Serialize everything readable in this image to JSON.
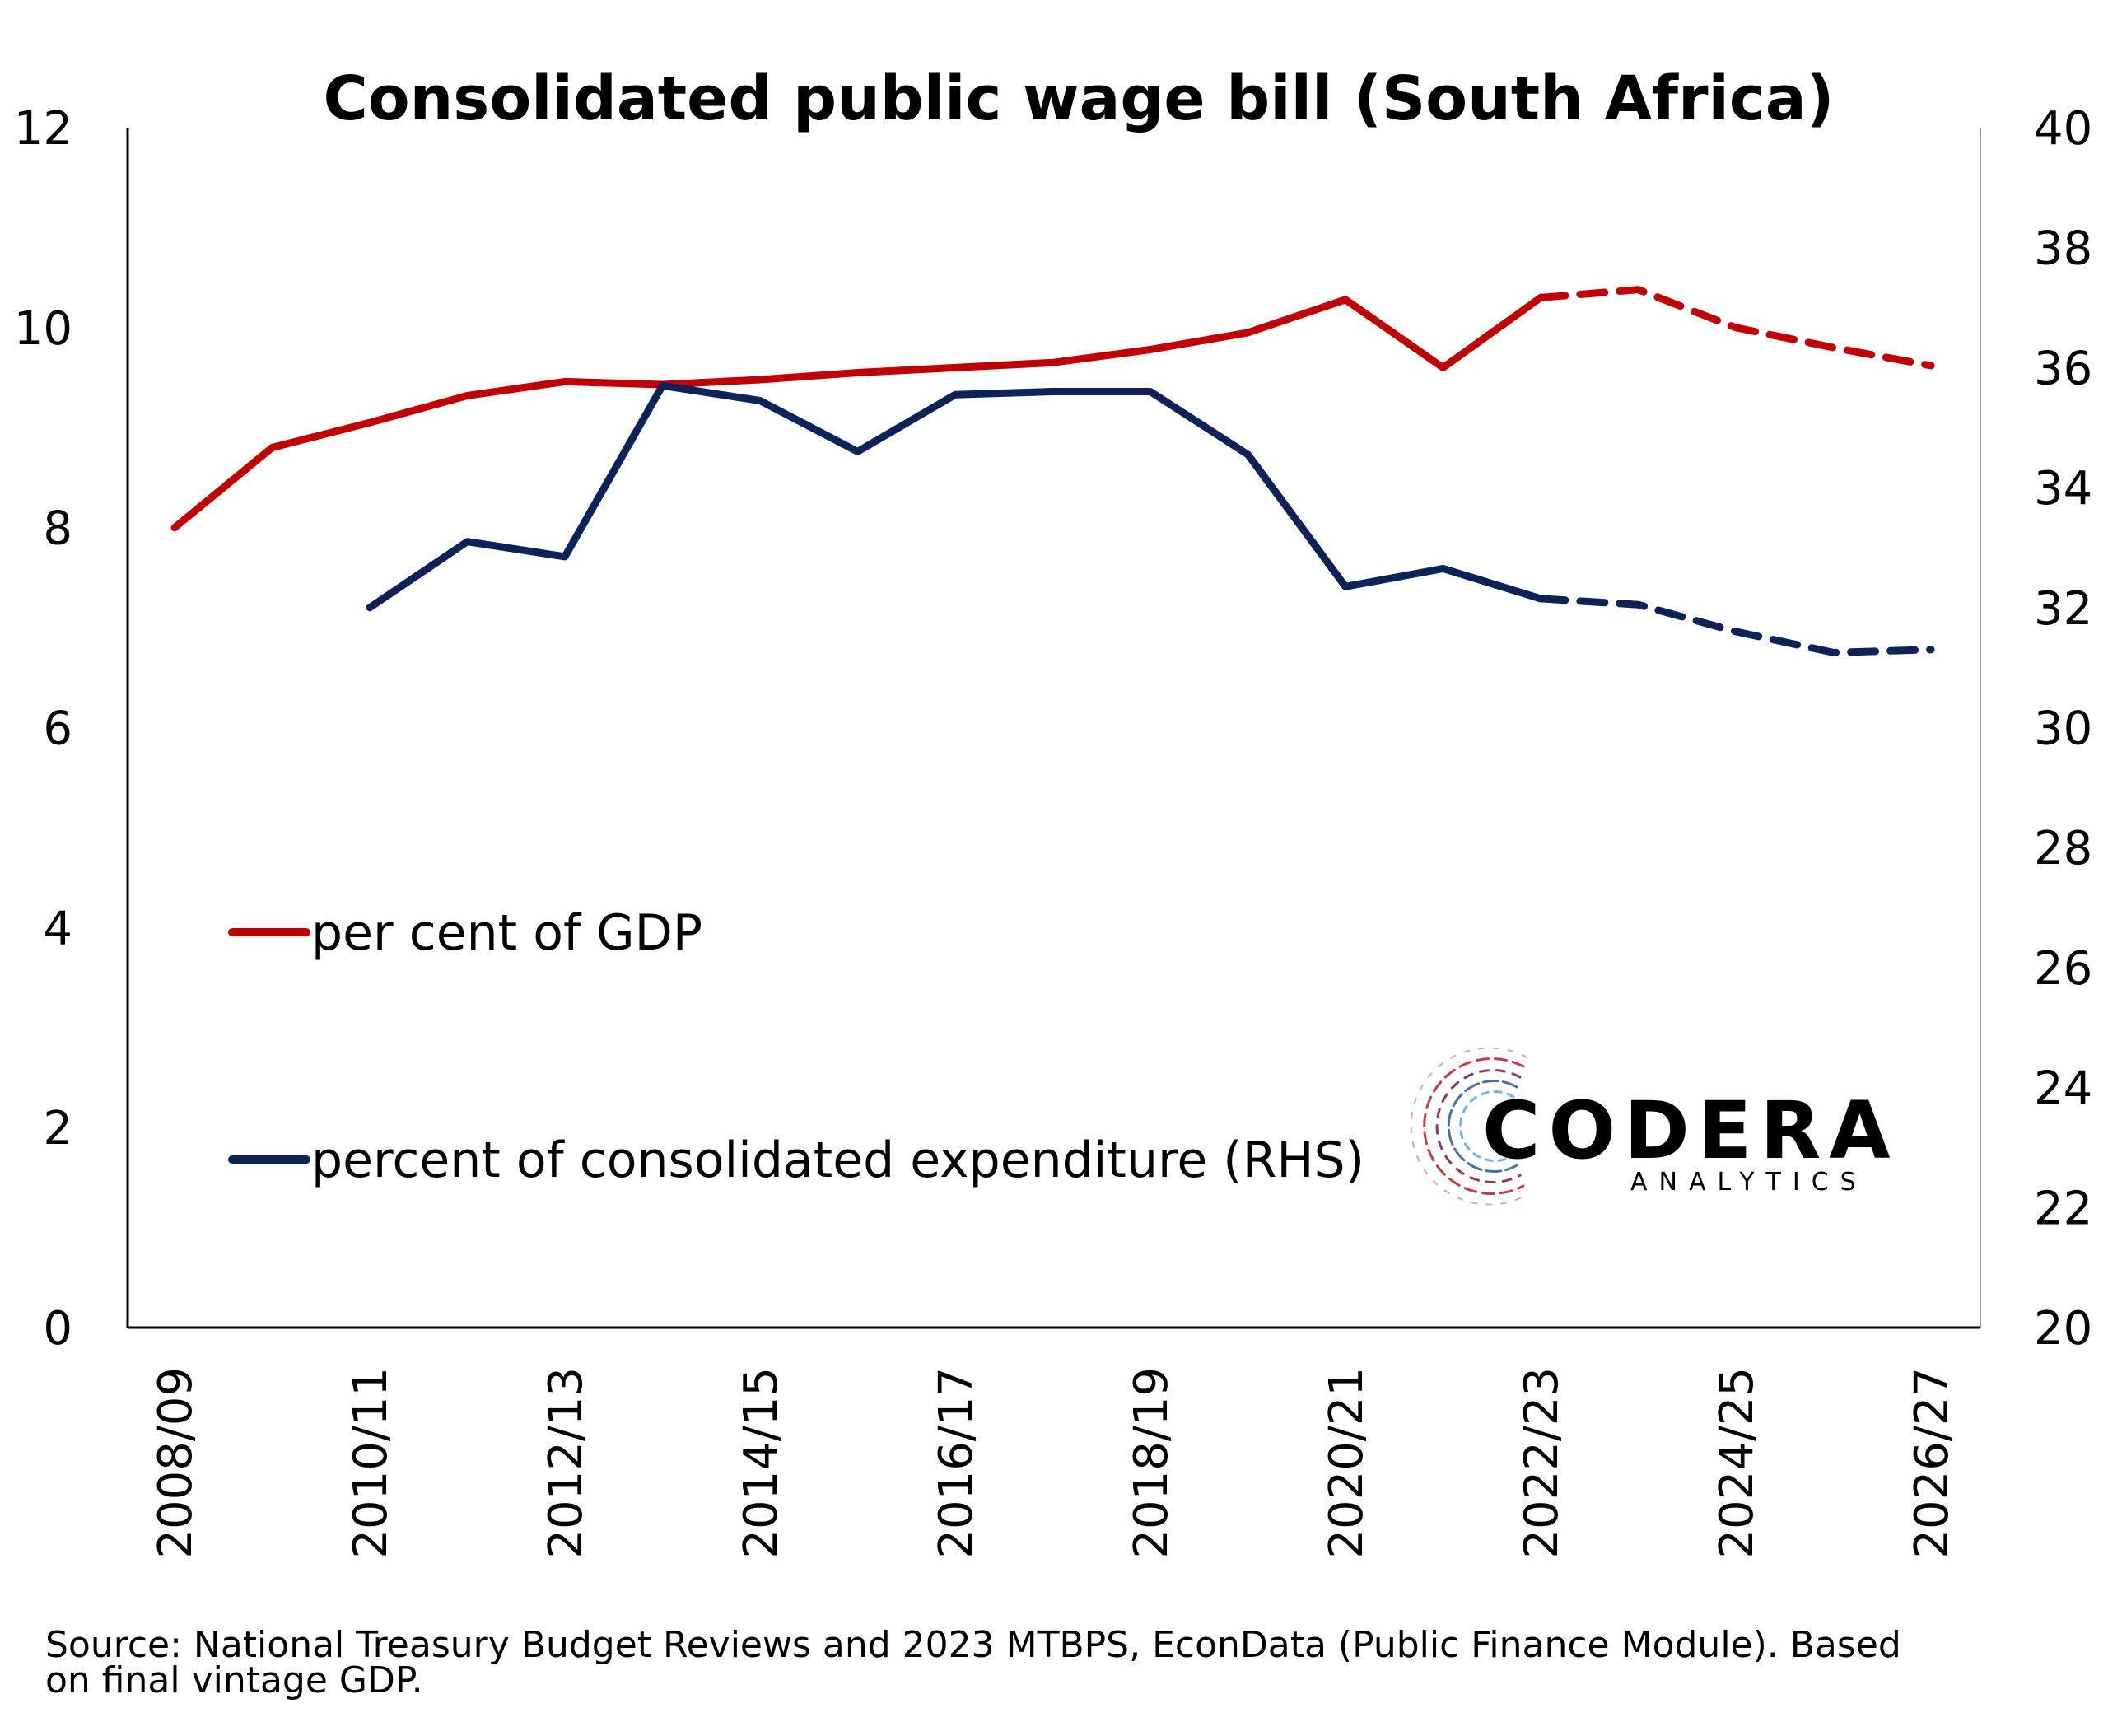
{
  "chart_data": {
    "type": "line",
    "title": "Consolidated public wage bill (South Africa)",
    "categories": [
      "2008/09",
      "2009/10",
      "2010/11",
      "2011/12",
      "2012/13",
      "2013/14",
      "2014/15",
      "2015/16",
      "2016/17",
      "2017/18",
      "2018/19",
      "2019/20",
      "2020/21",
      "2021/22",
      "2022/23",
      "2023/24",
      "2024/25",
      "2025/26",
      "2026/27"
    ],
    "x_tick_labels": [
      "2008/09",
      "2010/11",
      "2012/13",
      "2014/15",
      "2016/17",
      "2018/19",
      "2020/21",
      "2022/23",
      "2024/25",
      "2026/27"
    ],
    "y_left": {
      "min": 0,
      "max": 12,
      "ticks": [
        "0",
        "2",
        "4",
        "6",
        "8",
        "10",
        "12"
      ]
    },
    "y_right": {
      "min": 20,
      "max": 40,
      "ticks": [
        "20",
        "22",
        "24",
        "26",
        "28",
        "30",
        "32",
        "34",
        "36",
        "38",
        "40"
      ]
    },
    "series": [
      {
        "name": "per cent of GDP",
        "axis": "left",
        "color": "#C00000",
        "values": [
          8.0,
          8.8,
          9.05,
          9.32,
          9.46,
          9.43,
          9.48,
          9.55,
          9.6,
          9.65,
          9.78,
          9.95,
          10.28,
          9.6,
          10.3,
          10.38,
          10.0,
          9.8,
          9.62
        ],
        "forecast_from_index": 14
      },
      {
        "name": "percent of consolidated expenditure (RHS)",
        "axis": "right",
        "color": "#0D2258",
        "values": [
          null,
          null,
          32.0,
          33.1,
          32.85,
          35.7,
          35.45,
          34.6,
          35.55,
          35.6,
          35.6,
          34.55,
          32.35,
          32.65,
          32.15,
          32.05,
          31.6,
          31.25,
          31.3
        ],
        "forecast_from_index": 14
      }
    ],
    "legend_position": "lower-left",
    "grid": false
  },
  "source_line1": "Source: National Treasury Budget Reviews and 2023 MTBPS, EconData (Public Finance Module). Based",
  "source_line2": "on final vintage GDP.",
  "logo": {
    "word": "CODERA",
    "sub": "ANALYTICS"
  }
}
